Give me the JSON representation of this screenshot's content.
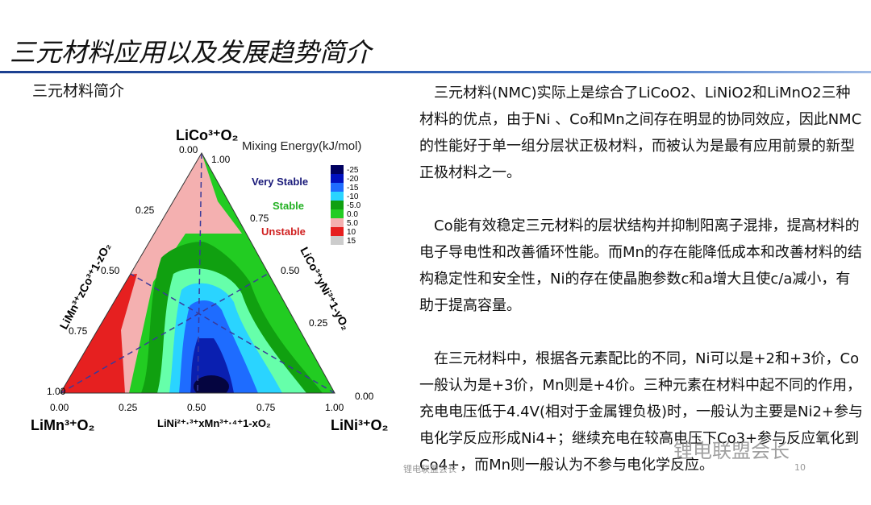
{
  "header": {
    "title": "三元材料应用以及发展趋势简介"
  },
  "section": {
    "title": "三元材料简介"
  },
  "figure": {
    "legend_title": "Mixing Energy(kJ/mol)",
    "vertices": {
      "top": "LiCo³⁺O₂",
      "left": "LiMn³⁺O₂",
      "right": "LiNi³⁺O₂"
    },
    "edges": {
      "left": "LiMn³⁺zCo³⁺1-zO₂",
      "right": "LiCo³⁺yNi³⁺1-yO₂",
      "bottom": "LiNi²⁺·³⁺xMn³⁺·⁴⁺1-xO₂"
    },
    "ticks": {
      "left": [
        "1.00",
        "0.75",
        "0.50",
        "0.25",
        "0.00"
      ],
      "right": [
        "1.00",
        "0.75",
        "0.50",
        "0.25",
        "0.00"
      ],
      "bottom": [
        "0.00",
        "0.25",
        "0.50",
        "0.75",
        "1.00"
      ]
    },
    "zones": [
      "Very Stable",
      "Stable",
      "Unstable"
    ],
    "scale": [
      "-25",
      "-20",
      "-15",
      "-10",
      "-5.0",
      "0.0",
      "5.0",
      "10",
      "15"
    ]
  },
  "paragraphs": [
    "三元材料(NMC)实际上是综合了LiCoO2、LiNiO2和LiMnO2三种材料的优点，由于Ni 、Co和Mn之间存在明显的协同效应，因此NMC的性能好于单一组分层状正极材料，而被认为是最有应用前景的新型正极材料之一。",
    "Co能有效稳定三元材料的层状结构并抑制阳离子混排，提高材料的电子导电性和改善循环性能。而Mn的存在能降低成本和改善材料的结构稳定性和安全性，Ni的存在使晶胞参数c和a增大且使c/a减小，有助于提高容量。",
    "在三元材料中，根据各元素配比的不同，Ni可以是+2和+3价，Co一般认为是+3价，Mn则是+4价。三种元素在材料中起不同的作用，充电电压低于4.4V(相对于金属锂负极)时，一般认为主要是Ni2+参与电化学反应形成Ni4+；继续充电在较高电压下Co3+参与反应氧化到Co4+，而Mn则一般认为不参与电化学反应。"
  ],
  "footer": {
    "source": "锂电联盟会长",
    "page": "10"
  },
  "watermark": "锂电联盟会长"
}
